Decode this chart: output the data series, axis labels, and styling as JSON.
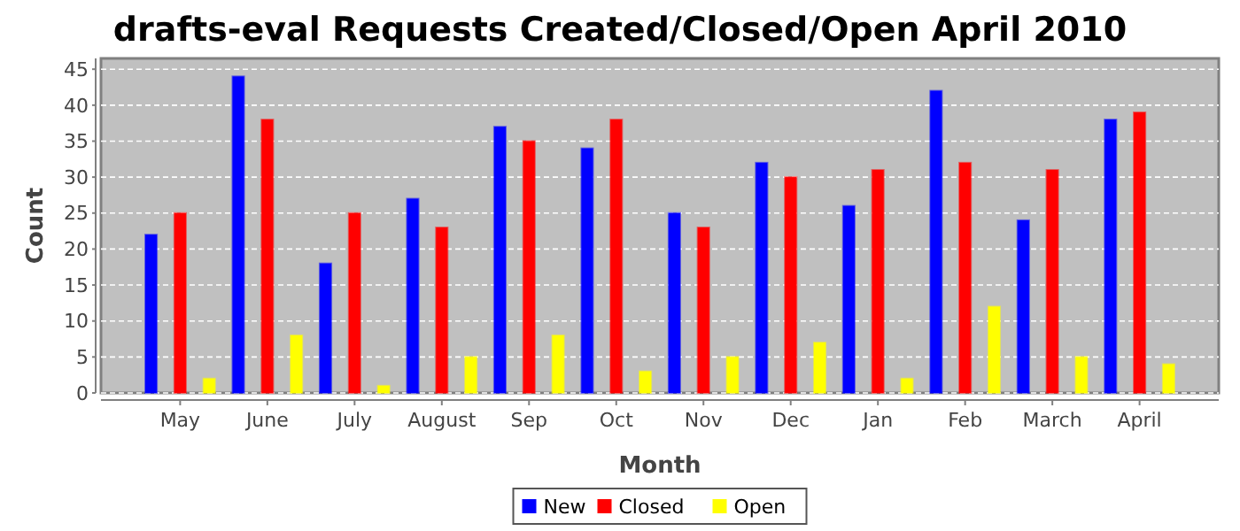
{
  "chart_data": {
    "type": "bar",
    "title": "drafts-eval Requests Created/Closed/Open April 2010",
    "xlabel": "Month",
    "ylabel": "Count",
    "categories": [
      "May",
      "June",
      "July",
      "August",
      "Sep",
      "Oct",
      "Nov",
      "Dec",
      "Jan",
      "Feb",
      "March",
      "April"
    ],
    "series": [
      {
        "name": "New",
        "color": "#0000ff",
        "values": [
          22,
          44,
          18,
          27,
          37,
          34,
          25,
          32,
          26,
          42,
          24,
          38
        ]
      },
      {
        "name": "Closed",
        "color": "#ff0000",
        "values": [
          25,
          38,
          25,
          23,
          35,
          38,
          23,
          30,
          31,
          32,
          31,
          39
        ]
      },
      {
        "name": "Open",
        "color": "#ffff00",
        "values": [
          2,
          8,
          1,
          5,
          8,
          3,
          5,
          7,
          2,
          12,
          5,
          4
        ]
      }
    ],
    "ylim": [
      0,
      46.5
    ],
    "yticks": [
      0,
      5,
      10,
      15,
      20,
      25,
      30,
      35,
      40,
      45
    ],
    "grid": "y",
    "legend": "bottom"
  }
}
